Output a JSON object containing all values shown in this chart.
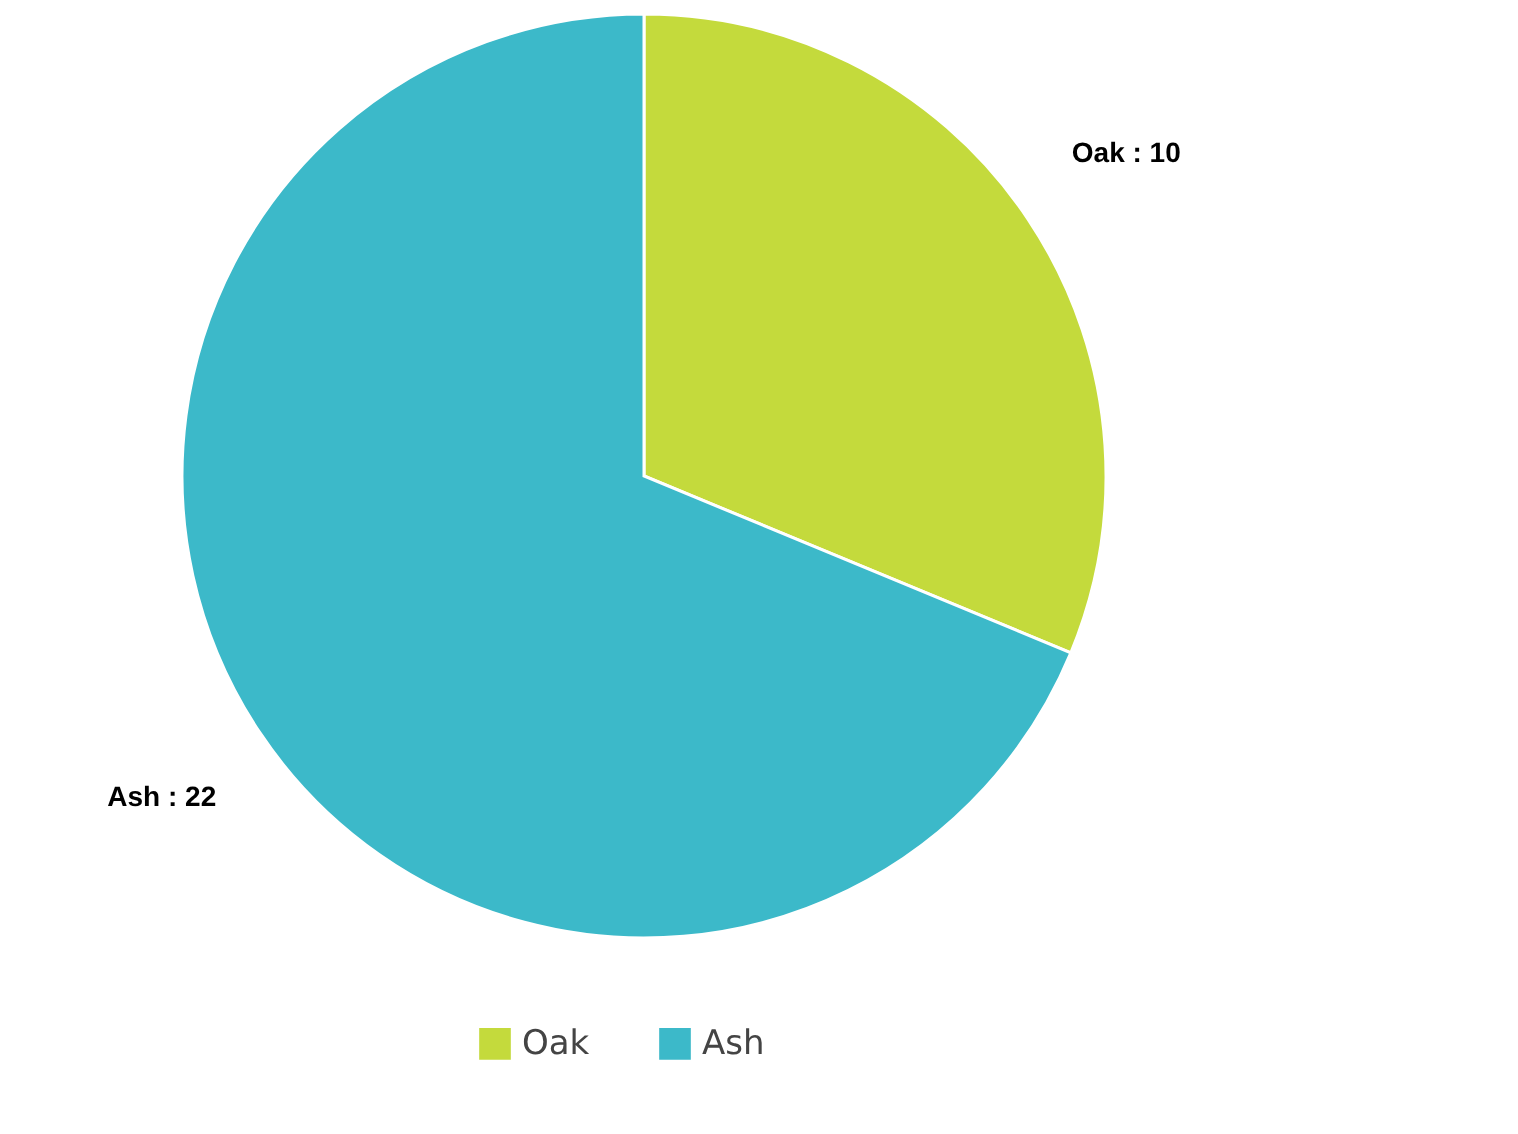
{
  "chart_data": {
    "type": "pie",
    "categories": [
      "Oak",
      "Ash"
    ],
    "values": [
      10,
      22
    ],
    "colors": [
      "#c4da3c",
      "#3cb9c9"
    ],
    "value_labels": [
      "Oak : 10",
      "Ash : 22"
    ],
    "legend": "bottom"
  }
}
